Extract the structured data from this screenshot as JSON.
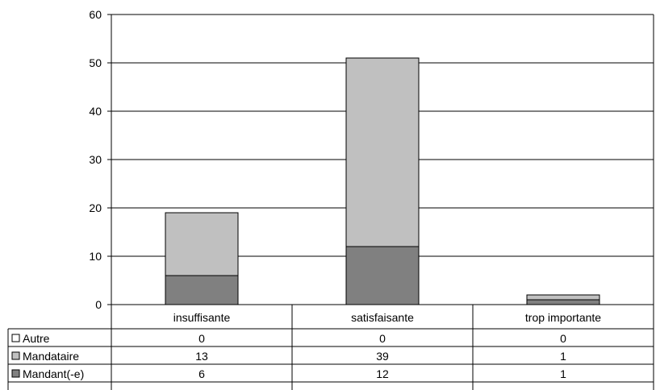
{
  "chart_data": {
    "type": "bar",
    "stacked": true,
    "categories": [
      "insuffisante",
      "satisfaisante",
      "trop   importante"
    ],
    "series": [
      {
        "name": "Autre",
        "values": [
          0,
          0,
          0
        ],
        "color": "#ffffff"
      },
      {
        "name": "Mandataire",
        "values": [
          13,
          39,
          1
        ],
        "color": "#c0c0c0"
      },
      {
        "name": "Mandant(-e)",
        "values": [
          6,
          12,
          1
        ],
        "color": "#808080"
      }
    ],
    "ylim": [
      0,
      60
    ],
    "yticks": [
      0,
      10,
      20,
      30,
      40,
      50,
      60
    ],
    "grid": true,
    "legend": "data-table-left",
    "data_table": true
  }
}
